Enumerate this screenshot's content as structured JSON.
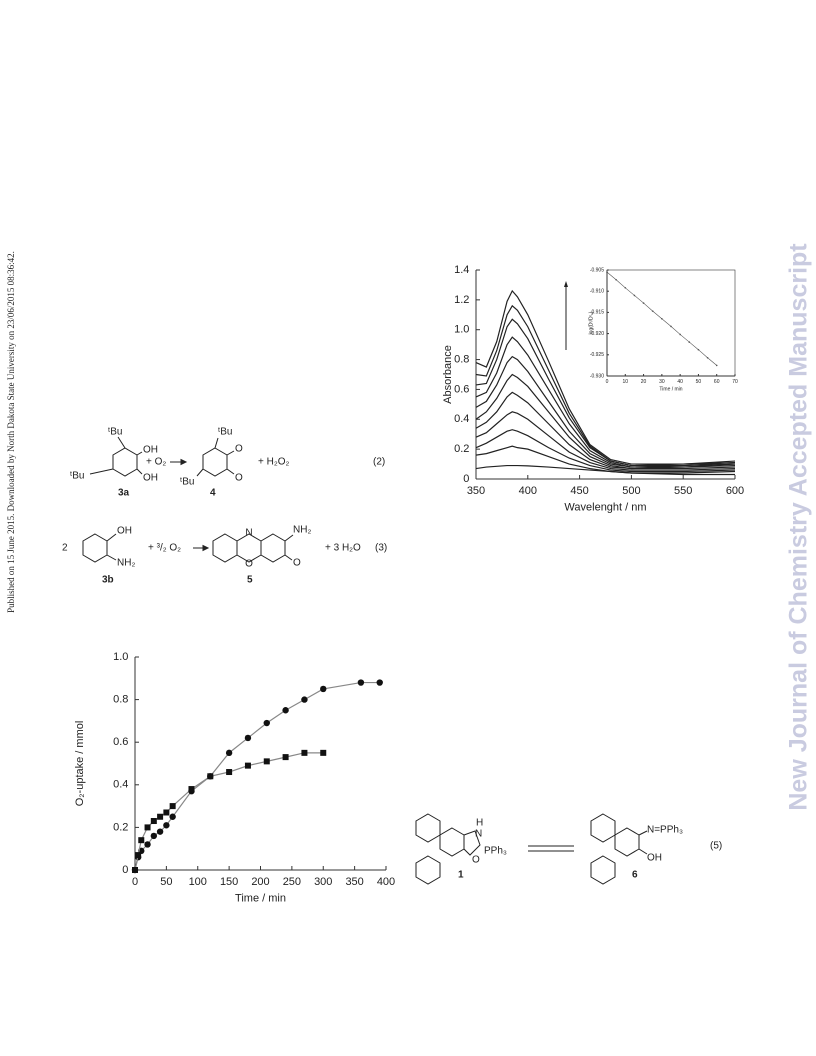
{
  "side_text": "Published on 15 June 2015. Downloaded by North Dakota State University on 23/06/2015 08:36:42.",
  "watermark": "New Journal of Chemistry Accepted Manuscript",
  "equations": [
    {
      "labels": [
        "ᵗBu",
        "OH",
        "OH",
        "ᵗBu",
        "3a",
        "+ O₂",
        "ᵗBu",
        "O",
        "O",
        "ᵗBu",
        "4",
        "+ H₂O₂",
        "(2)"
      ]
    },
    {
      "labels": [
        "2",
        "OH",
        "NH₂",
        "3b",
        "+ ³/₂ O₂",
        "N",
        "O",
        "NH₂",
        "O",
        "5",
        "+ 3 H₂O",
        "(3)"
      ]
    },
    {
      "labels": [
        "H",
        "N",
        "PPh₃",
        "O",
        "1",
        "N=PPh₃",
        "OH",
        "6",
        "(5)"
      ]
    }
  ],
  "chart_data": [
    {
      "type": "line",
      "xlabel": "Wavelenght / nm",
      "ylabel": "Absorbance",
      "x": [
        350,
        360,
        370,
        380,
        385,
        390,
        400,
        420,
        440,
        460,
        480,
        500,
        550,
        600
      ],
      "xlim": [
        350,
        600
      ],
      "xticks": [
        350,
        400,
        450,
        500,
        550,
        600
      ],
      "ylim": [
        0,
        1.4
      ],
      "yticks": [
        0,
        0.2,
        0.4,
        0.6,
        0.8,
        {
          "value": 1,
          "label": "1.0"
        },
        1.2,
        1.4
      ],
      "series": [
        {
          "color": "#222",
          "values": [
            0.07,
            0.08,
            0.085,
            0.09,
            0.09,
            0.09,
            0.088,
            0.08,
            0.07,
            0.06,
            0.05,
            0.04,
            0.03,
            0.03
          ]
        },
        {
          "color": "#222",
          "values": [
            0.16,
            0.17,
            0.19,
            0.21,
            0.22,
            0.21,
            0.2,
            0.15,
            0.1,
            0.07,
            0.05,
            0.04,
            0.04,
            0.05
          ]
        },
        {
          "color": "#222",
          "values": [
            0.21,
            0.24,
            0.28,
            0.32,
            0.33,
            0.32,
            0.29,
            0.21,
            0.14,
            0.09,
            0.06,
            0.05,
            0.05,
            0.06
          ]
        },
        {
          "color": "#222",
          "values": [
            0.28,
            0.31,
            0.37,
            0.43,
            0.45,
            0.44,
            0.4,
            0.29,
            0.18,
            0.11,
            0.07,
            0.06,
            0.06,
            0.07
          ]
        },
        {
          "color": "#222",
          "values": [
            0.34,
            0.38,
            0.45,
            0.55,
            0.58,
            0.56,
            0.51,
            0.37,
            0.23,
            0.13,
            0.08,
            0.07,
            0.07,
            0.08
          ]
        },
        {
          "color": "#222",
          "values": [
            0.4,
            0.45,
            0.54,
            0.66,
            0.7,
            0.68,
            0.62,
            0.45,
            0.28,
            0.15,
            0.09,
            0.07,
            0.08,
            0.09
          ]
        },
        {
          "color": "#222",
          "values": [
            0.48,
            0.52,
            0.63,
            0.78,
            0.82,
            0.8,
            0.72,
            0.52,
            0.32,
            0.17,
            0.1,
            0.08,
            0.08,
            0.1
          ]
        },
        {
          "color": "#222",
          "values": [
            0.55,
            0.58,
            0.71,
            0.9,
            0.95,
            0.92,
            0.83,
            0.6,
            0.37,
            0.19,
            0.11,
            0.08,
            0.09,
            0.1
          ]
        },
        {
          "color": "#222",
          "values": [
            0.63,
            0.64,
            0.8,
            1.02,
            1.07,
            1.04,
            0.94,
            0.67,
            0.41,
            0.21,
            0.12,
            0.09,
            0.09,
            0.11
          ]
        },
        {
          "color": "#222",
          "values": [
            0.7,
            0.69,
            0.86,
            1.1,
            1.16,
            1.13,
            1.02,
            0.73,
            0.44,
            0.22,
            0.12,
            0.09,
            0.1,
            0.11
          ]
        },
        {
          "color": "#222",
          "values": [
            0.78,
            0.75,
            0.92,
            1.19,
            1.26,
            1.22,
            1.1,
            0.79,
            0.47,
            0.23,
            0.13,
            0.1,
            0.1,
            0.12
          ]
        }
      ]
    },
    {
      "type": "line",
      "xlabel": "Time / min",
      "ylabel": "log(Dᵗ/Dᵗ₀)",
      "frame": true,
      "x": [
        0,
        5,
        10,
        15,
        20,
        25,
        30,
        35,
        40,
        45,
        50,
        55,
        60
      ],
      "xlim": [
        0,
        70
      ],
      "xticks": [
        0,
        10,
        20,
        30,
        40,
        50,
        60,
        70
      ],
      "ylim": [
        -0.93,
        -0.905
      ],
      "yticks": [
        {
          "value": -0.93,
          "label": "-0.930"
        },
        -0.925,
        {
          "value": -0.92,
          "label": "-0.920"
        },
        -0.915,
        {
          "value": -0.91,
          "label": "-0.910"
        },
        -0.905
      ],
      "series": [
        {
          "color": "#555",
          "markers": true,
          "values": [
            -0.9055,
            -0.9073,
            -0.9092,
            -0.911,
            -0.9128,
            -0.9147,
            -0.9165,
            -0.9183,
            -0.9202,
            -0.922,
            -0.9238,
            -0.9257,
            -0.9275
          ]
        }
      ]
    },
    {
      "type": "scatter",
      "xlabel": "Time / min",
      "ylabel": "O₂-uptake / mmol",
      "xlim": [
        0,
        400
      ],
      "xticks": [
        0,
        50,
        100,
        150,
        200,
        250,
        300,
        350,
        400
      ],
      "ylim": [
        0,
        1
      ],
      "yticks": [
        0,
        0.2,
        0.4,
        0.6,
        0.8,
        {
          "value": 1,
          "label": "1.0"
        }
      ],
      "series": [
        {
          "marker": "circle",
          "color": "#111",
          "x": [
            0,
            5,
            10,
            20,
            30,
            40,
            50,
            60,
            90,
            120,
            150,
            180,
            210,
            240,
            270,
            300,
            360,
            390
          ],
          "values": [
            0,
            0.06,
            0.09,
            0.12,
            0.16,
            0.18,
            0.21,
            0.25,
            0.37,
            0.44,
            0.55,
            0.62,
            0.69,
            0.75,
            0.8,
            0.85,
            0.88,
            0.88
          ]
        },
        {
          "marker": "square",
          "color": "#111",
          "x": [
            0,
            5,
            10,
            20,
            30,
            40,
            50,
            60,
            90,
            120,
            150,
            180,
            210,
            240,
            270,
            300
          ],
          "values": [
            0,
            0.07,
            0.14,
            0.2,
            0.23,
            0.25,
            0.27,
            0.3,
            0.38,
            0.44,
            0.46,
            0.49,
            0.51,
            0.53,
            0.55,
            0.55
          ]
        }
      ]
    }
  ]
}
